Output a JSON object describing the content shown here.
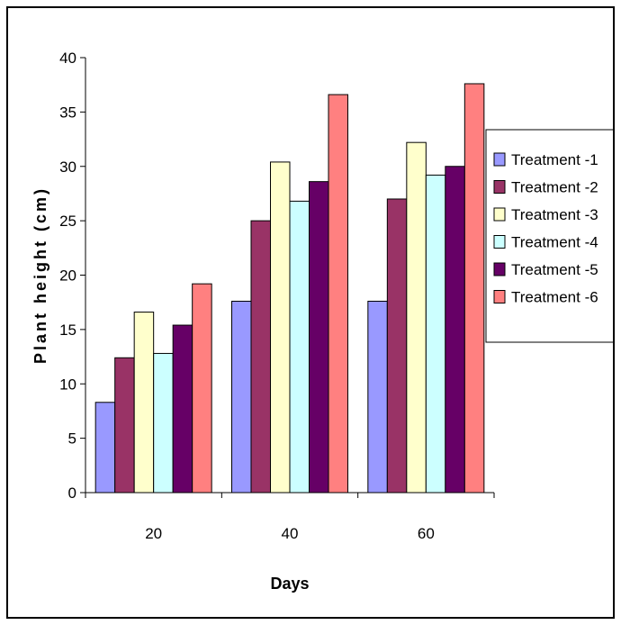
{
  "chart_data": {
    "type": "bar",
    "title": "",
    "xlabel": "Days",
    "ylabel": "Plant height (cm)",
    "categories": [
      "20",
      "40",
      "60"
    ],
    "ylim": [
      0,
      40
    ],
    "yticks": [
      0,
      5,
      10,
      15,
      20,
      25,
      30,
      35,
      40
    ],
    "grid": false,
    "legend_position": "right",
    "series": [
      {
        "name": "Treatment -1",
        "color": "#9999ff",
        "values": [
          8.3,
          17.6,
          17.6
        ]
      },
      {
        "name": "Treatment -2",
        "color": "#993366",
        "values": [
          12.4,
          25.0,
          27.0
        ]
      },
      {
        "name": "Treatment -3",
        "color": "#ffffcc",
        "values": [
          16.6,
          30.4,
          32.2
        ]
      },
      {
        "name": "Treatment -4",
        "color": "#ccffff",
        "values": [
          12.8,
          26.8,
          29.2
        ]
      },
      {
        "name": "Treatment -5",
        "color": "#660066",
        "values": [
          15.4,
          28.6,
          30.0
        ]
      },
      {
        "name": "Treatment -6",
        "color": "#ff8080",
        "values": [
          19.2,
          36.6,
          37.6
        ]
      }
    ]
  }
}
